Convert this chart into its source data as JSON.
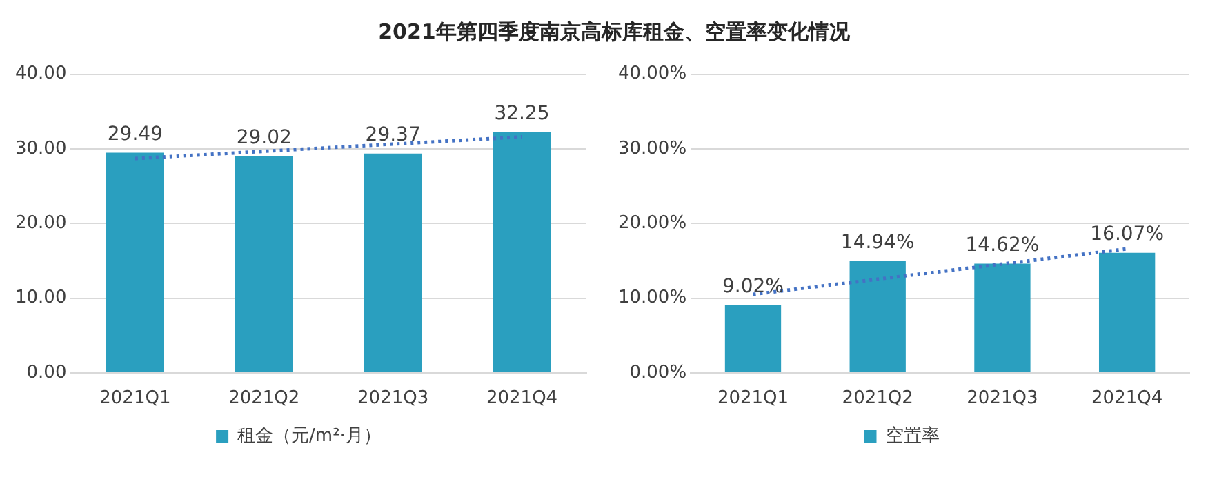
{
  "chart_data": [
    {
      "type": "bar",
      "title": "2021年第四季度南京高标库租金、空置率变化情况",
      "categories": [
        "2021Q1",
        "2021Q2",
        "2021Q3",
        "2021Q4"
      ],
      "series": [
        {
          "name": "租金（元/m²·月）",
          "color": "#2a9fbf",
          "values": [
            29.49,
            29.02,
            29.37,
            32.25
          ],
          "value_labels": [
            "29.49",
            "29.02",
            "29.37",
            "32.25"
          ]
        },
        {
          "type": "line",
          "color": "#4472c4",
          "x": [
            "2021Q1",
            "2021Q4"
          ],
          "values": [
            28.7,
            31.6
          ],
          "line_style": "dotted",
          "marker": "none"
        }
      ],
      "ylim": [
        0,
        40
      ],
      "yticks": [
        {
          "value": 0,
          "label": "0.00"
        },
        {
          "value": 10,
          "label": "10.00"
        },
        {
          "value": 20,
          "label": "20.00"
        },
        {
          "value": 30,
          "label": "30.00"
        },
        {
          "value": 40,
          "label": "40.00"
        }
      ],
      "grid": "y",
      "legend": "bottom"
    },
    {
      "type": "bar",
      "categories": [
        "2021Q1",
        "2021Q2",
        "2021Q3",
        "2021Q4"
      ],
      "series": [
        {
          "name": "空置率",
          "color": "#2a9fbf",
          "values": [
            9.02,
            14.94,
            14.62,
            16.07
          ],
          "value_labels": [
            "9.02%",
            "14.94%",
            "14.62%",
            "16.07%"
          ]
        },
        {
          "type": "line",
          "color": "#4472c4",
          "x": [
            "2021Q1",
            "2021Q4"
          ],
          "values": [
            10.5,
            16.6
          ],
          "line_style": "dotted",
          "marker": "none"
        }
      ],
      "ylim": [
        0,
        40
      ],
      "yticks": [
        {
          "value": 0,
          "label": "0.00%"
        },
        {
          "value": 10,
          "label": "10.00%"
        },
        {
          "value": 20,
          "label": "20.00%"
        },
        {
          "value": 30,
          "label": "30.00%"
        },
        {
          "value": 40,
          "label": "40.00%"
        }
      ],
      "grid": "y",
      "legend": "bottom"
    }
  ]
}
